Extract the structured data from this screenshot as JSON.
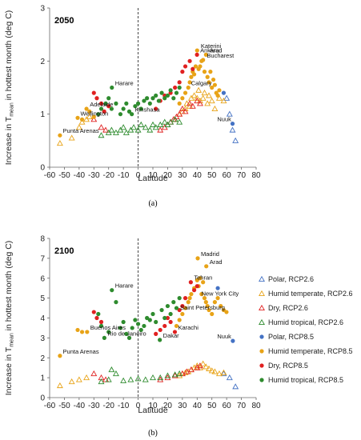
{
  "colors": {
    "polar": "#4472c4",
    "humid_temperate": "#e8a317",
    "dry": "#e02020",
    "humid_tropical": "#2e8b2e"
  },
  "legend": [
    {
      "label": "Polar, RCP2.6",
      "group": "polar",
      "marker": "open-triangle"
    },
    {
      "label": "Humid temperate, RCP2.6",
      "group": "humid_temperate",
      "marker": "open-triangle"
    },
    {
      "label": "Dry, RCP2.6",
      "group": "dry",
      "marker": "open-triangle"
    },
    {
      "label": "Humid tropical, RCP2.6",
      "group": "humid_tropical",
      "marker": "open-triangle"
    },
    {
      "label": "Polar, RCP8.5",
      "group": "polar",
      "marker": "filled-circle"
    },
    {
      "label": "Humid temperate, RCP8.5",
      "group": "humid_temperate",
      "marker": "filled-circle"
    },
    {
      "label": "Dry, RCP8.5",
      "group": "dry",
      "marker": "filled-circle"
    },
    {
      "label": "Humid tropical, RCP8.5",
      "group": "humid_tropical",
      "marker": "filled-circle"
    }
  ],
  "chart_data": [
    {
      "type": "scatter",
      "panel_label": "2050",
      "caption": "(a)",
      "xlabel": "Latitude",
      "ylabel_main": "Increase in T",
      "ylabel_sub": "mean",
      "ylabel_rest": " in hottest month (deg C)",
      "xlim": [
        -60,
        80
      ],
      "ylim": [
        0,
        3
      ],
      "xticks": [
        "-60",
        "-50",
        "-40",
        "-30",
        "-20",
        "-10",
        "0",
        "10",
        "20",
        "30",
        "40",
        "50",
        "60",
        "70",
        "80"
      ],
      "yticks": [
        "0",
        "1",
        "2",
        "3"
      ],
      "reference_line_x": 0,
      "annotations": [
        {
          "text": "Katerini",
          "x": 40.3,
          "y": 2.2
        },
        {
          "text": "Ankara",
          "x": 39.9,
          "y": 2.12
        },
        {
          "text": "Arad",
          "x": 46.2,
          "y": 2.12
        },
        {
          "text": "Bucharest",
          "x": 44.4,
          "y": 2.02
        },
        {
          "text": "Calgary",
          "x": 51.0,
          "y": 1.5
        },
        {
          "text": "Harare",
          "x": -17.8,
          "y": 1.5
        },
        {
          "text": "Adelaide",
          "x": -34.9,
          "y": 1.1
        },
        {
          "text": "Kinshasa",
          "x": -4.3,
          "y": 1.0
        },
        {
          "text": "Wellington",
          "x": -41.3,
          "y": 0.93
        },
        {
          "text": "Punta Arenas",
          "x": -53.2,
          "y": 0.6
        },
        {
          "text": "Nuuk",
          "x": 64.2,
          "y": 0.82
        }
      ],
      "series": [
        {
          "name": "Polar, RCP2.6",
          "group": "polar",
          "marker": "open-triangle",
          "x": [
            60,
            62,
            64,
            66
          ],
          "y": [
            1.3,
            1.0,
            0.7,
            0.5
          ]
        },
        {
          "name": "Humid temperate, RCP2.6",
          "group": "humid_temperate",
          "marker": "open-triangle",
          "x": [
            -53,
            -45,
            -40,
            -38,
            -35,
            -33,
            25,
            28,
            30,
            32,
            33,
            35,
            36,
            38,
            40,
            41,
            42,
            44,
            45,
            47,
            48,
            50,
            52,
            55,
            58
          ],
          "y": [
            0.45,
            0.55,
            0.75,
            0.85,
            0.9,
            0.95,
            0.9,
            1.0,
            1.05,
            1.1,
            1.2,
            1.15,
            1.3,
            1.35,
            1.3,
            1.45,
            1.25,
            1.3,
            1.4,
            1.2,
            1.35,
            1.25,
            1.1,
            1.3,
            1.25
          ]
        },
        {
          "name": "Dry, RCP2.6",
          "group": "dry",
          "marker": "open-triangle",
          "x": [
            -30,
            -25,
            -22,
            15,
            18,
            20,
            22,
            24,
            26,
            28,
            30,
            32,
            35,
            37,
            40,
            42
          ],
          "y": [
            0.9,
            0.75,
            0.7,
            0.7,
            0.75,
            0.8,
            0.85,
            0.9,
            0.95,
            1.0,
            1.1,
            1.05,
            1.2,
            1.15,
            1.25,
            1.2
          ]
        },
        {
          "name": "Humid tropical, RCP2.6",
          "group": "humid_tropical",
          "marker": "open-triangle",
          "x": [
            -25,
            -20,
            -18,
            -15,
            -12,
            -10,
            -8,
            -5,
            -3,
            0,
            2,
            5,
            8,
            10,
            12,
            15,
            18,
            20,
            22,
            25,
            28
          ],
          "y": [
            0.6,
            0.65,
            0.7,
            0.65,
            0.7,
            0.75,
            0.65,
            0.7,
            0.75,
            0.7,
            0.8,
            0.75,
            0.7,
            0.8,
            0.75,
            0.8,
            0.85,
            0.8,
            0.85,
            0.9,
            0.85
          ]
        },
        {
          "name": "Polar, RCP8.5",
          "group": "polar",
          "marker": "filled-circle",
          "x": [
            64,
            58
          ],
          "y": [
            0.82,
            1.4
          ]
        },
        {
          "name": "Humid temperate, RCP8.5",
          "group": "humid_temperate",
          "marker": "filled-circle",
          "x": [
            -53,
            -41,
            -38,
            -35,
            -33,
            -30,
            28,
            30,
            32,
            34,
            35,
            36,
            37,
            38,
            39,
            40,
            41,
            42,
            43,
            44,
            45,
            46,
            47,
            48,
            49,
            50,
            51,
            52,
            53,
            54,
            55
          ],
          "y": [
            0.6,
            0.93,
            0.9,
            1.1,
            1.05,
            0.95,
            1.2,
            1.3,
            1.4,
            1.5,
            1.6,
            1.7,
            1.8,
            1.75,
            1.9,
            2.2,
            1.85,
            1.9,
            2.0,
            2.02,
            1.8,
            2.12,
            1.7,
            1.6,
            1.8,
            1.5,
            1.65,
            1.55,
            1.4,
            1.35,
            1.45
          ]
        },
        {
          "name": "Dry, RCP8.5",
          "group": "dry",
          "marker": "filled-circle",
          "x": [
            -30,
            -28,
            -25,
            -23,
            -20,
            12,
            15,
            18,
            22,
            25,
            28,
            30,
            32,
            35,
            37,
            39.9
          ],
          "y": [
            1.4,
            1.3,
            1.2,
            1.05,
            1.15,
            1.1,
            1.25,
            1.35,
            1.4,
            1.5,
            1.6,
            1.8,
            1.9,
            2.0,
            1.85,
            2.12
          ]
        },
        {
          "name": "Humid tropical, RCP8.5",
          "group": "humid_tropical",
          "marker": "filled-circle",
          "x": [
            -27,
            -25,
            -22,
            -20,
            -18,
            -17.8,
            -15,
            -12,
            -10,
            -8,
            -6,
            -4.3,
            -2,
            0,
            2,
            4,
            6,
            8,
            10,
            12,
            14,
            16,
            18,
            20,
            22,
            24,
            26,
            28
          ],
          "y": [
            1.0,
            1.1,
            1.2,
            1.3,
            1.1,
            1.5,
            1.2,
            1.0,
            1.1,
            1.2,
            1.05,
            1.0,
            1.15,
            1.2,
            1.1,
            1.25,
            1.3,
            1.2,
            1.3,
            1.35,
            1.25,
            1.4,
            1.3,
            1.35,
            1.45,
            1.3,
            1.4,
            1.5
          ]
        }
      ]
    },
    {
      "type": "scatter",
      "panel_label": "2100",
      "caption": "(b)",
      "xlabel": "Latitude",
      "ylabel_main": "Increase in T",
      "ylabel_sub": "mean",
      "ylabel_rest": " in hottest month (deg C)",
      "xlim": [
        -60,
        80
      ],
      "ylim": [
        0,
        8
      ],
      "xticks": [
        "-60",
        "-50",
        "-40",
        "-30",
        "-20",
        "-10",
        "0",
        "10",
        "20",
        "30",
        "40",
        "50",
        "60",
        "70",
        "80"
      ],
      "yticks": [
        "0",
        "1",
        "2",
        "3",
        "4",
        "5",
        "6",
        "7",
        "8"
      ],
      "reference_line_x": 0,
      "annotations": [
        {
          "text": "Madrid",
          "x": 40.4,
          "y": 7.0
        },
        {
          "text": "Arad",
          "x": 46.2,
          "y": 6.6
        },
        {
          "text": "Tehran",
          "x": 35.7,
          "y": 5.8
        },
        {
          "text": "New York City",
          "x": 40.7,
          "y": 5.0
        },
        {
          "text": "Saint Petersburg",
          "x": 59.9,
          "y": 4.3
        },
        {
          "text": "Harare",
          "x": -17.8,
          "y": 5.4
        },
        {
          "text": "Buenos Aires",
          "x": -34.6,
          "y": 3.3
        },
        {
          "text": "Rio de Janeiro",
          "x": -22.9,
          "y": 3.0
        },
        {
          "text": "Dakar",
          "x": 14.7,
          "y": 2.9
        },
        {
          "text": "Karachi",
          "x": 24.9,
          "y": 3.3
        },
        {
          "text": "Punta Arenas",
          "x": -53.2,
          "y": 2.1
        },
        {
          "text": "Nuuk",
          "x": 64.2,
          "y": 2.85
        }
      ],
      "series": [
        {
          "name": "Polar, RCP2.6",
          "group": "polar",
          "marker": "open-triangle",
          "x": [
            58,
            62,
            66
          ],
          "y": [
            1.2,
            1.0,
            0.55
          ]
        },
        {
          "name": "Humid temperate, RCP2.6",
          "group": "humid_temperate",
          "marker": "open-triangle",
          "x": [
            -53,
            -45,
            -40,
            -35,
            28,
            30,
            32,
            34,
            36,
            38,
            40,
            42,
            44,
            46,
            48,
            50,
            52,
            55,
            58
          ],
          "y": [
            0.6,
            0.8,
            0.9,
            1.0,
            1.1,
            1.2,
            1.25,
            1.3,
            1.4,
            1.5,
            1.6,
            1.5,
            1.7,
            1.55,
            1.45,
            1.35,
            1.3,
            1.2,
            1.25
          ]
        },
        {
          "name": "Dry, RCP2.6",
          "group": "dry",
          "marker": "open-triangle",
          "x": [
            -30,
            -25,
            -22,
            15,
            20,
            25,
            30,
            33,
            36,
            40,
            42
          ],
          "y": [
            1.2,
            1.0,
            0.9,
            0.9,
            1.0,
            1.1,
            1.2,
            1.3,
            1.4,
            1.5,
            1.6
          ]
        },
        {
          "name": "Humid tropical, RCP2.6",
          "group": "humid_tropical",
          "marker": "open-triangle",
          "x": [
            -25,
            -20,
            -18,
            -15,
            -10,
            -5,
            0,
            5,
            10,
            15,
            20,
            25,
            28
          ],
          "y": [
            0.8,
            0.9,
            1.4,
            1.2,
            0.85,
            0.9,
            0.95,
            0.9,
            1.0,
            1.0,
            1.1,
            1.15,
            1.2
          ]
        },
        {
          "name": "Polar, RCP8.5",
          "group": "polar",
          "marker": "filled-circle",
          "x": [
            64.2,
            54
          ],
          "y": [
            2.85,
            5.5
          ]
        },
        {
          "name": "Humid temperate, RCP8.5",
          "group": "humid_temperate",
          "marker": "filled-circle",
          "x": [
            -53,
            -41,
            -38,
            -34.6,
            26,
            28,
            30,
            32,
            34,
            35,
            36,
            38,
            40,
            40.4,
            41,
            42,
            43,
            44,
            45,
            46,
            46.2,
            47,
            48,
            50,
            52,
            54,
            56,
            58,
            59.9
          ],
          "y": [
            2.1,
            3.4,
            3.3,
            3.3,
            3.6,
            3.9,
            4.2,
            4.5,
            4.8,
            5.0,
            5.2,
            5.5,
            5.9,
            7.0,
            5.6,
            6.0,
            5.2,
            5.8,
            5.0,
            4.8,
            6.6,
            4.6,
            4.4,
            4.2,
            4.8,
            5.0,
            4.6,
            4.4,
            4.3
          ]
        },
        {
          "name": "Dry, RCP8.5",
          "group": "dry",
          "marker": "filled-circle",
          "x": [
            -30,
            -28,
            -25,
            12,
            15,
            18,
            20,
            22,
            24.9,
            28,
            30,
            32,
            35.7,
            38,
            40
          ],
          "y": [
            4.3,
            4.0,
            3.8,
            3.2,
            3.4,
            3.6,
            4.0,
            3.8,
            3.3,
            4.4,
            4.6,
            5.0,
            5.8,
            5.4,
            5.6
          ]
        },
        {
          "name": "Humid tropical, RCP8.5",
          "group": "humid_tropical",
          "marker": "filled-circle",
          "x": [
            -27,
            -25,
            -22.9,
            -20,
            -17.8,
            -15,
            -12,
            -10,
            -8,
            -6,
            -4,
            -2,
            0,
            2,
            4,
            6,
            8,
            10,
            12,
            14.7,
            16,
            18,
            20,
            22,
            24,
            26,
            28
          ],
          "y": [
            4.2,
            3.6,
            3.0,
            3.3,
            5.4,
            4.8,
            3.5,
            3.8,
            3.2,
            3.0,
            3.5,
            3.9,
            3.7,
            3.4,
            3.6,
            4.0,
            3.9,
            4.2,
            3.8,
            2.9,
            4.4,
            4.0,
            4.6,
            4.2,
            4.8,
            4.5,
            5.0
          ]
        }
      ]
    }
  ]
}
